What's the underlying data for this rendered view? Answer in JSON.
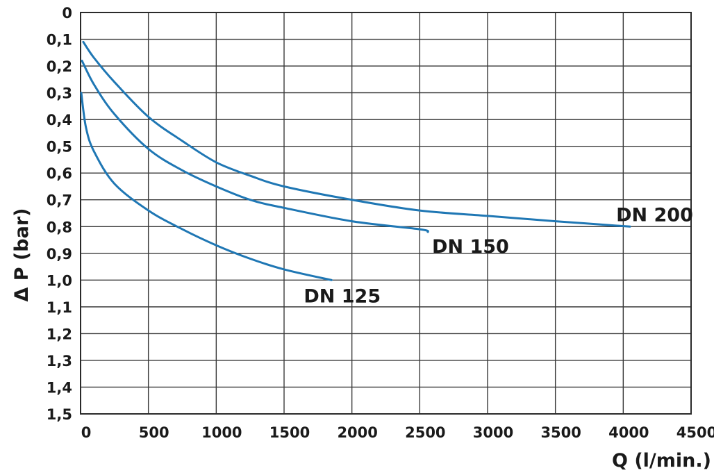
{
  "chart_data": {
    "type": "line",
    "title": "",
    "xlabel": "Q (l/min.)",
    "ylabel": "Δ P (bar)",
    "xlim": [
      0,
      4500
    ],
    "ylim": [
      0,
      1.5
    ],
    "y_inverted": true,
    "grid": true,
    "x_ticks": [
      "0",
      "500",
      "1000",
      "1500",
      "2000",
      "2500",
      "3000",
      "3500",
      "4000",
      "4500"
    ],
    "y_ticks": [
      "0",
      "0,1",
      "0,2",
      "0,3",
      "0,4",
      "0,5",
      "0,6",
      "0,7",
      "0,8",
      "0,9",
      "1,0",
      "1,1",
      "1,2",
      "1,3",
      "1,4",
      "1,5"
    ],
    "line_color": "#1f77b4",
    "series": [
      {
        "name": "DN 200",
        "points": [
          [
            20,
            0.11
          ],
          [
            100,
            0.17
          ],
          [
            250,
            0.26
          ],
          [
            500,
            0.39
          ],
          [
            750,
            0.48
          ],
          [
            1000,
            0.56
          ],
          [
            1250,
            0.61
          ],
          [
            1500,
            0.65
          ],
          [
            2000,
            0.7
          ],
          [
            2500,
            0.74
          ],
          [
            3000,
            0.76
          ],
          [
            3500,
            0.78
          ],
          [
            4050,
            0.8
          ]
        ]
      },
      {
        "name": "DN 150",
        "points": [
          [
            10,
            0.18
          ],
          [
            100,
            0.27
          ],
          [
            250,
            0.38
          ],
          [
            500,
            0.51
          ],
          [
            750,
            0.59
          ],
          [
            1000,
            0.65
          ],
          [
            1250,
            0.7
          ],
          [
            1500,
            0.73
          ],
          [
            2000,
            0.78
          ],
          [
            2500,
            0.81
          ],
          [
            2560,
            0.82
          ]
        ]
      },
      {
        "name": "DN 125",
        "points": [
          [
            5,
            0.3
          ],
          [
            40,
            0.43
          ],
          [
            100,
            0.52
          ],
          [
            250,
            0.64
          ],
          [
            500,
            0.74
          ],
          [
            750,
            0.81
          ],
          [
            1000,
            0.87
          ],
          [
            1250,
            0.92
          ],
          [
            1500,
            0.96
          ],
          [
            1850,
            1.0
          ]
        ]
      }
    ]
  }
}
